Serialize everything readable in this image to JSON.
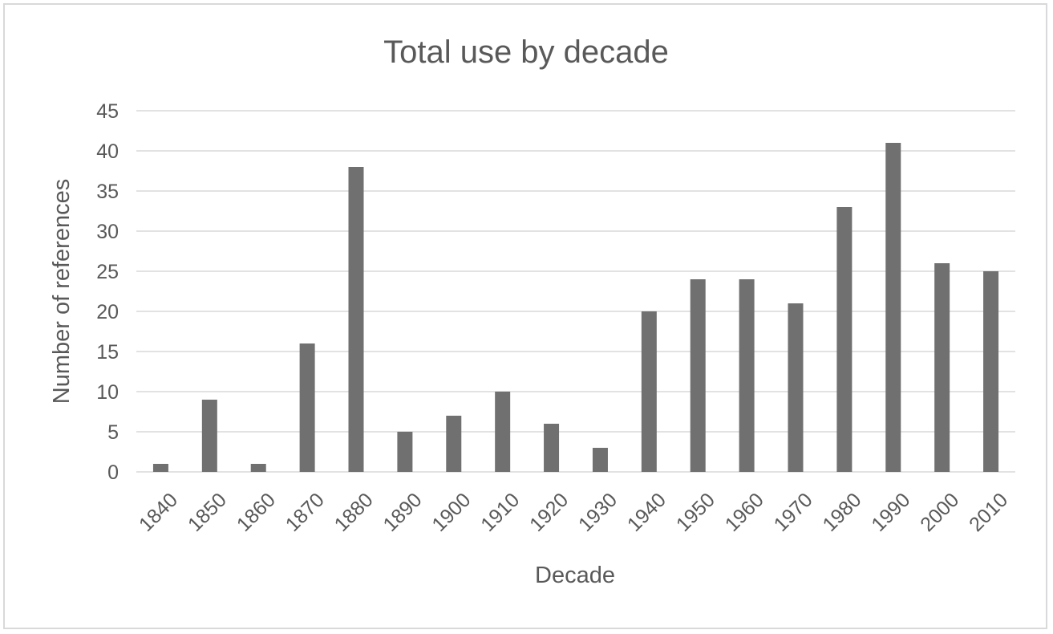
{
  "chart_data": {
    "type": "bar",
    "title": "Total use by decade",
    "xlabel": "Decade",
    "ylabel": "Number of references",
    "categories": [
      "1840",
      "1850",
      "1860",
      "1870",
      "1880",
      "1890",
      "1900",
      "1910",
      "1920",
      "1930",
      "1940",
      "1950",
      "1960",
      "1970",
      "1980",
      "1990",
      "2000",
      "2010"
    ],
    "values": [
      1,
      9,
      1,
      16,
      38,
      5,
      7,
      10,
      6,
      3,
      20,
      24,
      24,
      21,
      33,
      41,
      26,
      25
    ],
    "ylim": [
      0,
      45
    ],
    "yticks": [
      "0",
      "5",
      "10",
      "15",
      "20",
      "25",
      "30",
      "35",
      "40",
      "45"
    ],
    "grid": true,
    "legend": "none",
    "colors": {
      "bar": "#707070",
      "grid": "#d9d9d9",
      "text": "#595959",
      "border": "#d9d9d9"
    }
  }
}
